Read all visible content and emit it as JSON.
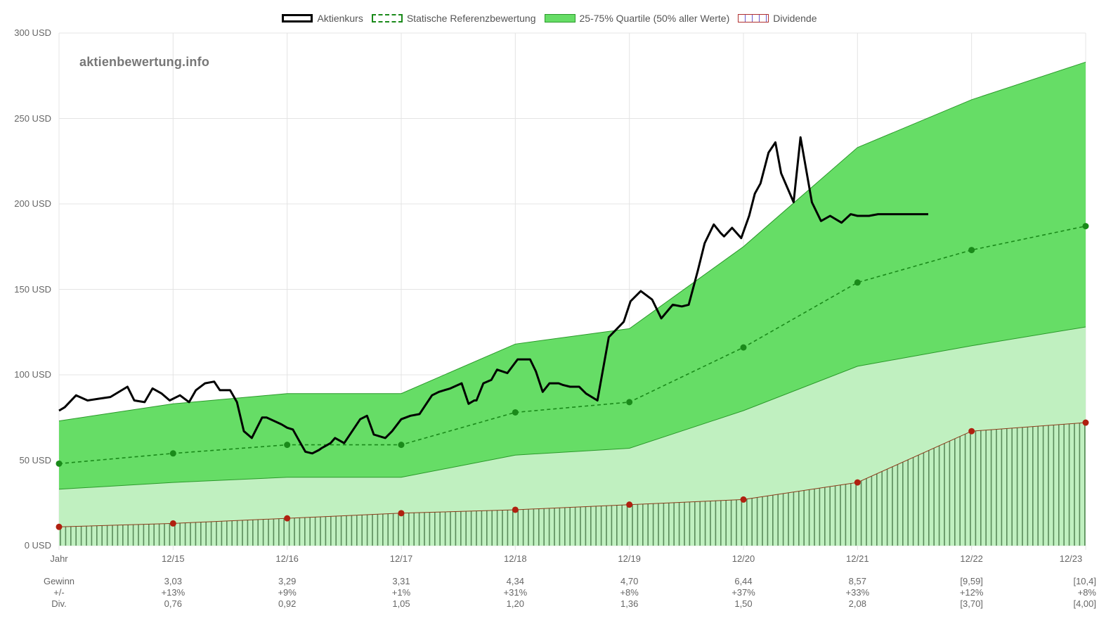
{
  "legend": {
    "price": "Aktienkurs",
    "reference": "Statische Referenzbewertung",
    "band": "25-75% Quartile (50% aller Werte)",
    "dividend": "Dividende"
  },
  "watermark": "aktienbewertung.info",
  "colors": {
    "band_upper": "#66dd66",
    "band_lower": "#c0f0c0",
    "band_line": "#2a9a2a",
    "reference": "#1a8a1a",
    "price": "#000000",
    "dividend_line": "#8b3a1a",
    "dividend_point": "#b02010",
    "dividend_hatch": "#5a8a5a",
    "grid": "#e4e4e4"
  },
  "chart_data": {
    "type": "line",
    "title": "",
    "ylabel": "",
    "ylim": [
      0,
      300
    ],
    "y_ticks": [
      "0 USD",
      "50 USD",
      "100 USD",
      "150 USD",
      "200 USD",
      "250 USD",
      "300 USD"
    ],
    "y_tick_values": [
      0,
      50,
      100,
      150,
      200,
      250,
      300
    ],
    "x_range": [
      0,
      9
    ],
    "x_ticks": [
      "Jahr",
      "12/15",
      "12/16",
      "12/17",
      "12/18",
      "12/19",
      "12/20",
      "12/21",
      "12/22",
      "12/23"
    ],
    "series": [
      {
        "name": "Statische Referenzbewertung",
        "x": [
          0,
          1,
          2,
          3,
          4,
          5,
          6,
          7,
          8,
          9
        ],
        "values": [
          48,
          54,
          59,
          59,
          78,
          84,
          116,
          154,
          173,
          187
        ]
      },
      {
        "name": "Dividende",
        "x": [
          0,
          1,
          2,
          3,
          4,
          5,
          6,
          7,
          8,
          9
        ],
        "values": [
          11,
          13,
          16,
          19,
          21,
          24,
          27,
          37,
          67,
          72
        ]
      },
      {
        "name": "25-75% Quartile (50% aller Werte)",
        "x": [
          0,
          1,
          2,
          3,
          4,
          5,
          6,
          7,
          8,
          9
        ],
        "upper": [
          73,
          83,
          89,
          89,
          118,
          127,
          175,
          233,
          261,
          283
        ],
        "lower": [
          33,
          37,
          40,
          40,
          53,
          57,
          79,
          105,
          117,
          128
        ]
      },
      {
        "name": "Aktienkurs",
        "x": [
          0,
          0.05,
          0.15,
          0.25,
          0.35,
          0.45,
          0.55,
          0.6,
          0.66,
          0.75,
          0.82,
          0.9,
          0.97,
          1.06,
          1.14,
          1.2,
          1.28,
          1.36,
          1.41,
          1.5,
          1.56,
          1.62,
          1.69,
          1.78,
          1.82,
          1.95,
          2,
          2.05,
          2.1,
          2.16,
          2.22,
          2.28,
          2.3,
          2.38,
          2.42,
          2.5,
          2.57,
          2.64,
          2.7,
          2.76,
          2.86,
          2.92,
          3,
          3.08,
          3.16,
          3.21,
          3.27,
          3.33,
          3.43,
          3.53,
          3.59,
          3.64,
          3.66,
          3.72,
          3.79,
          3.84,
          3.93,
          4.02,
          4.08,
          4.13,
          4.18,
          4.24,
          4.3,
          4.38,
          4.42,
          4.48,
          4.56,
          4.62,
          4.72,
          4.82,
          4.95,
          5.01,
          5.1,
          5.2,
          5.28,
          5.38,
          5.46,
          5.52,
          5.6,
          5.66,
          5.74,
          5.8,
          5.83,
          5.9,
          5.98,
          6.05,
          6.1,
          6.15,
          6.22,
          6.28,
          6.33,
          6.44,
          6.5,
          6.6,
          6.68,
          6.76,
          6.86,
          6.94,
          7,
          7.04,
          7.1,
          7.18,
          7.22,
          7.26,
          7.32,
          7.4,
          7.46,
          7.54,
          7.58,
          7.62
        ],
        "values": [
          79,
          81,
          88,
          85,
          86,
          87,
          91,
          93,
          85,
          84,
          92,
          89,
          85,
          88,
          84,
          91,
          95,
          96,
          91,
          91,
          84,
          67,
          63,
          75,
          75,
          71,
          69,
          68,
          62,
          55,
          54,
          56,
          57,
          60,
          63,
          60,
          67,
          74,
          76,
          65,
          63,
          67,
          74,
          76,
          77,
          82,
          88,
          90,
          92,
          95,
          83,
          85,
          85,
          95,
          97,
          103,
          101,
          109,
          109,
          109,
          102,
          90,
          95,
          95,
          94,
          93,
          93,
          89,
          85,
          122,
          131,
          143,
          149,
          144,
          133,
          141,
          140,
          141,
          161,
          177,
          188,
          183,
          181,
          186,
          180,
          193,
          206,
          212,
          230,
          236,
          218,
          201,
          239,
          201,
          190,
          193,
          189,
          194,
          193,
          193,
          193,
          194,
          194,
          194,
          194,
          194,
          194,
          194,
          194,
          194
        ]
      }
    ]
  },
  "table": {
    "rows": [
      {
        "label": "Gewinn",
        "values": [
          "3,03",
          "3,29",
          "3,31",
          "4,34",
          "4,70",
          "6,44",
          "8,57",
          "[9,59]",
          "[10,4]"
        ]
      },
      {
        "label": "+/-",
        "values": [
          "+13%",
          "+9%",
          "+1%",
          "+31%",
          "+8%",
          "+37%",
          "+33%",
          "+12%",
          "+8%"
        ]
      },
      {
        "label": "Div.",
        "values": [
          "0,76",
          "0,92",
          "1,05",
          "1,20",
          "1,36",
          "1,50",
          "2,08",
          "[3,70]",
          "[4,00]"
        ]
      }
    ]
  }
}
